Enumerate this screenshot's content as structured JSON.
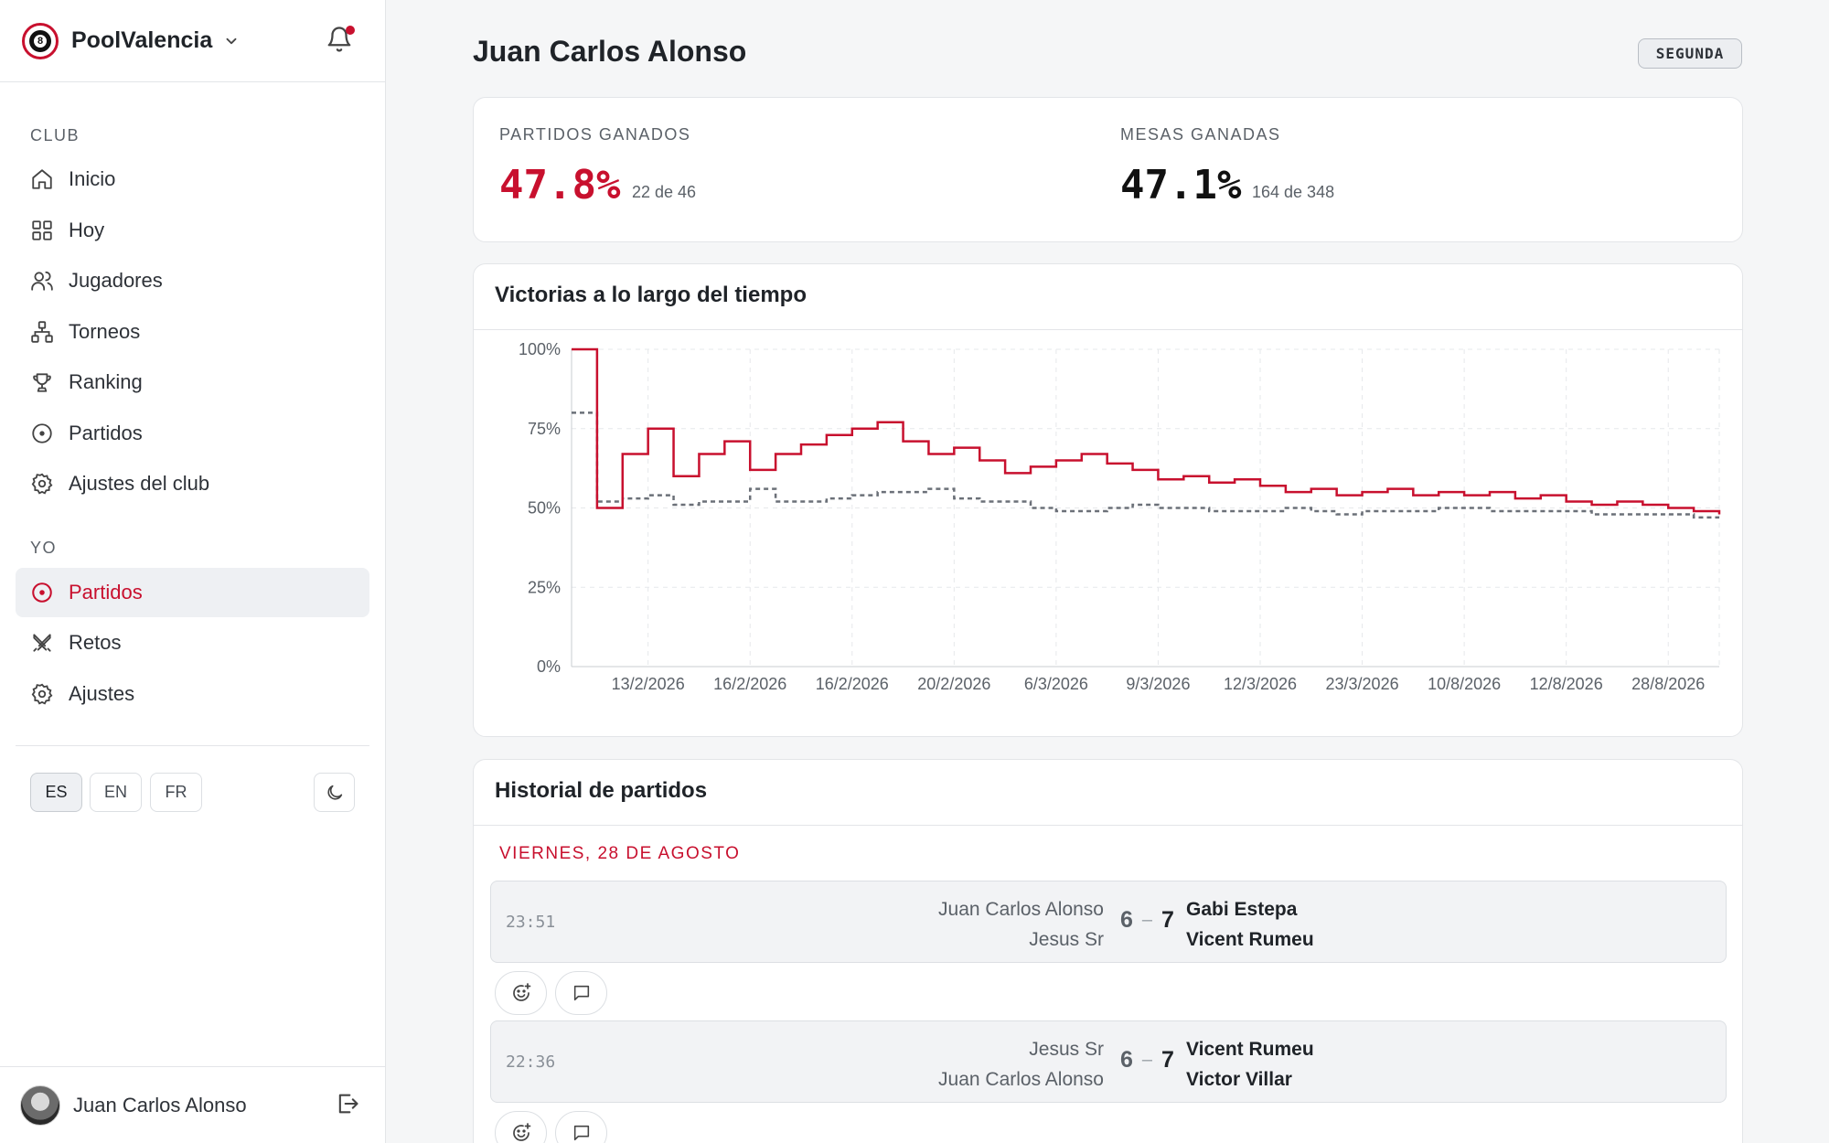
{
  "app": {
    "name": "PoolValencia"
  },
  "sidebar": {
    "club_label": "CLUB",
    "club_items": [
      {
        "label": "Inicio",
        "icon": "home-icon"
      },
      {
        "label": "Hoy",
        "icon": "grid-icon"
      },
      {
        "label": "Jugadores",
        "icon": "users-icon"
      },
      {
        "label": "Torneos",
        "icon": "bracket-icon"
      },
      {
        "label": "Ranking",
        "icon": "trophy-icon"
      },
      {
        "label": "Partidos",
        "icon": "target-icon"
      },
      {
        "label": "Ajustes del club",
        "icon": "gear-icon"
      }
    ],
    "me_label": "YO",
    "me_items": [
      {
        "label": "Partidos",
        "icon": "target-icon",
        "active": true
      },
      {
        "label": "Retos",
        "icon": "swords-icon"
      },
      {
        "label": "Ajustes",
        "icon": "gear-icon"
      }
    ],
    "languages": [
      "ES",
      "EN",
      "FR"
    ],
    "active_language": "ES",
    "user": {
      "name": "Juan Carlos Alonso"
    }
  },
  "player": {
    "name": "Juan Carlos Alonso",
    "tier": "SEGUNDA"
  },
  "stats": {
    "matches": {
      "label": "PARTIDOS GANADOS",
      "value": "47.8%",
      "detail": "22 de 46",
      "color": "#c8102e"
    },
    "tables": {
      "label": "MESAS GANADAS",
      "value": "47.1%",
      "detail": "164 de 348",
      "color": "#111111"
    }
  },
  "chart_title": "Victorias a lo largo del tiempo",
  "chart_data": {
    "type": "line",
    "step": true,
    "y_ticks": [
      "0%",
      "25%",
      "50%",
      "75%",
      "100%"
    ],
    "ylim": [
      0,
      100
    ],
    "x_ticks": [
      "13/2/2026",
      "16/2/2026",
      "16/2/2026",
      "20/2/2026",
      "6/3/2026",
      "9/3/2026",
      "12/3/2026",
      "23/3/2026",
      "10/8/2026",
      "12/8/2026",
      "28/8/2026"
    ],
    "x_count": 46,
    "grid": true,
    "series": [
      {
        "color": "#c8102e",
        "style": "solid",
        "values": [
          100,
          50,
          67,
          75,
          60,
          67,
          71,
          62,
          67,
          70,
          73,
          75,
          77,
          71,
          67,
          69,
          65,
          61,
          63,
          65,
          67,
          64,
          62,
          59,
          60,
          58,
          59,
          57,
          55,
          56,
          54,
          55,
          56,
          54,
          55,
          54,
          55,
          53,
          54,
          52,
          51,
          52,
          51,
          50,
          49,
          48
        ]
      },
      {
        "color": "#6b7078",
        "style": "dashed",
        "values": [
          80,
          52,
          53,
          54,
          51,
          52,
          52,
          56,
          52,
          52,
          53,
          54,
          55,
          55,
          56,
          53,
          52,
          52,
          50,
          49,
          49,
          50,
          51,
          50,
          50,
          49,
          49,
          49,
          50,
          49,
          48,
          49,
          49,
          49,
          50,
          50,
          49,
          49,
          49,
          49,
          48,
          48,
          48,
          48,
          47,
          47
        ]
      }
    ]
  },
  "history": {
    "title": "Historial de partidos",
    "date_header": "VIERNES, 28 DE AGOSTO",
    "matches": [
      {
        "time": "23:51",
        "left": [
          "Juan Carlos Alonso",
          "Jesus Sr"
        ],
        "score_left": "6",
        "score_right": "7",
        "right": [
          "Gabi Estepa",
          "Vicent Rumeu"
        ]
      },
      {
        "time": "22:36",
        "left": [
          "Jesus Sr",
          "Juan Carlos Alonso"
        ],
        "score_left": "6",
        "score_right": "7",
        "right": [
          "Vicent Rumeu",
          "Victor Villar"
        ]
      }
    ]
  }
}
